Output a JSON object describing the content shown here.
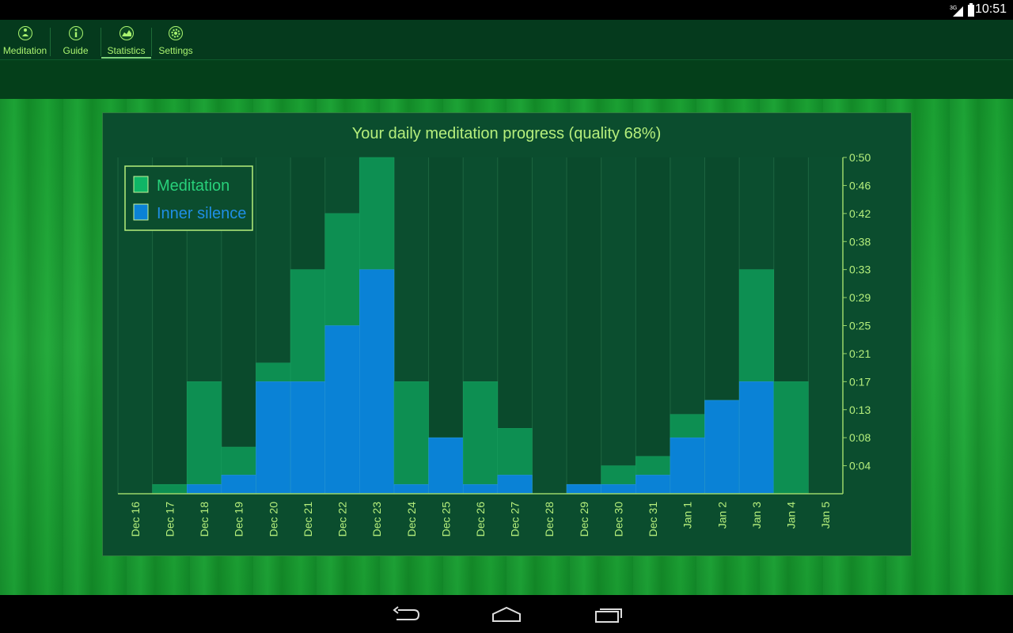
{
  "status_bar": {
    "time": "10:51",
    "network": "3G"
  },
  "tabs": [
    {
      "label": "Meditation",
      "icon": "meditation-figure-icon",
      "active": false
    },
    {
      "label": "Guide",
      "icon": "info-icon",
      "active": false
    },
    {
      "label": "Statistics",
      "icon": "statistics-icon",
      "active": true
    },
    {
      "label": "Settings",
      "icon": "gear-icon",
      "active": false
    }
  ],
  "colors": {
    "meditation": "#0d8f52",
    "inner_silence": "#0a82d6",
    "text": "#b6ef7c",
    "legend_meditation_text": "#28d07a",
    "legend_silence_text": "#1f8fe6"
  },
  "chart_data": {
    "type": "bar",
    "title": "Your daily meditation progress (quality 68%)",
    "categories": [
      "Dec 16",
      "Dec 17",
      "Dec 18",
      "Dec 19",
      "Dec 20",
      "Dec 21",
      "Dec 22",
      "Dec 23",
      "Dec 24",
      "Dec 25",
      "Dec 26",
      "Dec 27",
      "Dec 28",
      "Dec 29",
      "Dec 30",
      "Dec 31",
      "Jan 1",
      "Jan 2",
      "Jan 3",
      "Jan 4",
      "Jan 5"
    ],
    "series": [
      {
        "name": "Meditation",
        "values": [
          0,
          1,
          12,
          5,
          14,
          24,
          30,
          36,
          12,
          6,
          12,
          7,
          0,
          1,
          3,
          4,
          8.5,
          10,
          24,
          12,
          0
        ]
      },
      {
        "name": "Inner silence",
        "values": [
          0,
          0,
          1,
          2,
          12,
          12,
          18,
          24,
          1,
          6,
          1,
          2,
          0,
          1,
          1,
          2,
          6,
          10,
          12,
          0,
          0
        ]
      }
    ],
    "ytick_labels": [
      "0:04",
      "0:08",
      "0:13",
      "0:17",
      "0:21",
      "0:25",
      "0:29",
      "0:33",
      "0:38",
      "0:42",
      "0:46",
      "0:50"
    ],
    "ylim": [
      0,
      36
    ],
    "legend": "top-left",
    "units": "minutes"
  }
}
